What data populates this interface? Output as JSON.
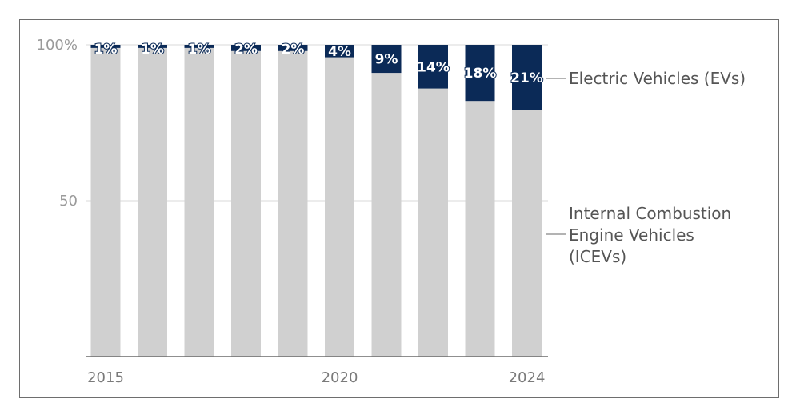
{
  "chart_data": {
    "type": "bar",
    "stacked": true,
    "percent_stacked": true,
    "categories": [
      "2015",
      "2016",
      "2017",
      "2018",
      "2019",
      "2020",
      "2021",
      "2022",
      "2023",
      "2024"
    ],
    "x_tick_labels": [
      "2015",
      "2020",
      "2024"
    ],
    "y_tick_labels": [
      "100%",
      "50"
    ],
    "ylim": [
      0,
      100
    ],
    "series": [
      {
        "name": "Internal Combustion Engine Vehicles (ICEVs)",
        "label_lines": [
          "Internal Combustion",
          "Engine Vehicles",
          "(ICEVs)"
        ],
        "values": [
          99,
          99,
          99,
          98,
          98,
          96,
          91,
          86,
          82,
          79
        ],
        "color": "#d0d0d0"
      },
      {
        "name": "Electric Vehicles (EVs)",
        "label_lines": [
          "Electric Vehicles (EVs)"
        ],
        "values": [
          1,
          1,
          1,
          2,
          2,
          4,
          9,
          14,
          18,
          21
        ],
        "data_labels": [
          "1%",
          "1%",
          "1%",
          "2%",
          "2%",
          "4%",
          "9%",
          "14%",
          "18%",
          "21%"
        ],
        "color": "#0b2a57"
      }
    ],
    "grid": true,
    "legend": "direct labels on right"
  }
}
